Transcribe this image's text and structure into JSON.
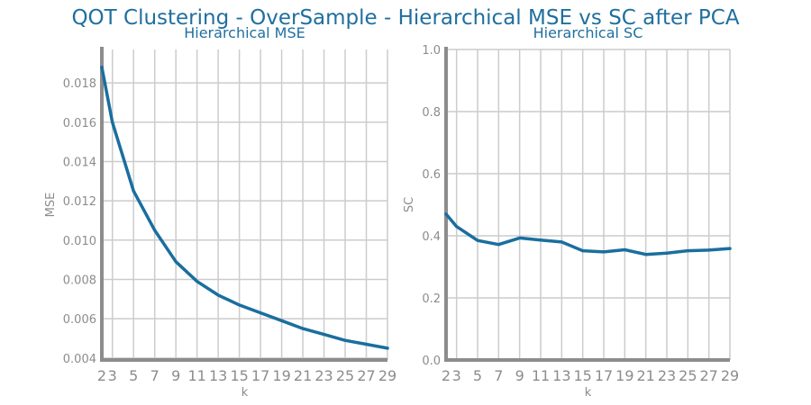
{
  "figure": {
    "title": "QOT Clustering - OverSample - Hierarchical MSE vs SC after PCA",
    "line_color": "#1a6e9f",
    "title_color": "#1f6f9f",
    "grid": true
  },
  "chart_data": [
    {
      "type": "line",
      "title": "Hierarchical MSE",
      "xlabel": "k",
      "ylabel": "MSE",
      "xlim": [
        2,
        29
      ],
      "ylim": [
        0.0039,
        0.0197
      ],
      "xticks": [
        2,
        3,
        5,
        7,
        9,
        11,
        13,
        15,
        17,
        19,
        21,
        23,
        25,
        27,
        29
      ],
      "yticks": [
        0.004,
        0.006,
        0.008,
        0.01,
        0.012,
        0.014,
        0.016,
        0.018
      ],
      "ytick_labels": [
        "0.004",
        "0.006",
        "0.008",
        "0.010",
        "0.012",
        "0.014",
        "0.016",
        "0.018"
      ],
      "series": [
        {
          "x": [
            2,
            3,
            5,
            7,
            9,
            11,
            13,
            15,
            17,
            19,
            21,
            23,
            25,
            27,
            29
          ],
          "y": [
            0.0188,
            0.016,
            0.0125,
            0.0105,
            0.0089,
            0.0079,
            0.0072,
            0.0067,
            0.0063,
            0.0059,
            0.0055,
            0.0052,
            0.0049,
            0.0047,
            0.0045
          ]
        }
      ]
    },
    {
      "type": "line",
      "title": "Hierarchical SC",
      "xlabel": "k",
      "ylabel": "SC",
      "xlim": [
        2,
        29
      ],
      "ylim": [
        0.0,
        1.0
      ],
      "xticks": [
        2,
        3,
        5,
        7,
        9,
        11,
        13,
        15,
        17,
        19,
        21,
        23,
        25,
        27,
        29
      ],
      "yticks": [
        0.0,
        0.2,
        0.4,
        0.6,
        0.8,
        1.0
      ],
      "ytick_labels": [
        "0.0",
        "0.2",
        "0.4",
        "0.6",
        "0.8",
        "1.0"
      ],
      "series": [
        {
          "x": [
            2,
            3,
            5,
            7,
            9,
            11,
            13,
            15,
            17,
            19,
            21,
            23,
            25,
            27,
            29
          ],
          "y": [
            0.47,
            0.43,
            0.385,
            0.372,
            0.393,
            0.386,
            0.38,
            0.352,
            0.348,
            0.355,
            0.34,
            0.344,
            0.352,
            0.354,
            0.359
          ]
        }
      ]
    }
  ]
}
